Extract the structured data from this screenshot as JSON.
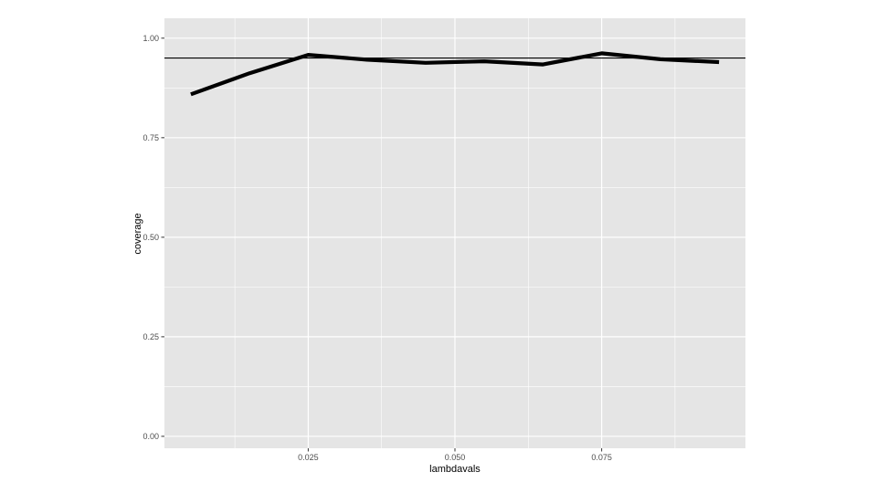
{
  "chart_data": {
    "type": "line",
    "title": "",
    "xlabel": "lambdavals",
    "ylabel": "coverage",
    "x": [
      0.005,
      0.015,
      0.025,
      0.035,
      0.045,
      0.055,
      0.065,
      0.075,
      0.085,
      0.095
    ],
    "series": [
      {
        "values": [
          0.859,
          0.912,
          0.958,
          0.946,
          0.938,
          0.942,
          0.934,
          0.962,
          0.947,
          0.94
        ],
        "color": "#000000"
      }
    ],
    "reference_line": {
      "y": 0.95,
      "color": "#000000"
    },
    "xlim": [
      0.0005,
      0.0995
    ],
    "ylim": [
      -0.03,
      1.05
    ],
    "x_ticks": [
      0.025,
      0.05,
      0.075
    ],
    "x_tick_labels": [
      "0.025",
      "0.050",
      "0.075"
    ],
    "x_minor_ticks": [
      0.0125,
      0.0375,
      0.0625,
      0.0875
    ],
    "y_ticks": [
      0,
      0.25,
      0.5,
      0.75,
      1
    ],
    "y_tick_labels": [
      "0.00",
      "0.25",
      "0.50",
      "0.75",
      "1.00"
    ],
    "y_minor_ticks": [
      0.125,
      0.375,
      0.625,
      0.875
    ],
    "grid": true,
    "panel_background": "#e5e5e5",
    "grid_color": "#ffffff"
  }
}
